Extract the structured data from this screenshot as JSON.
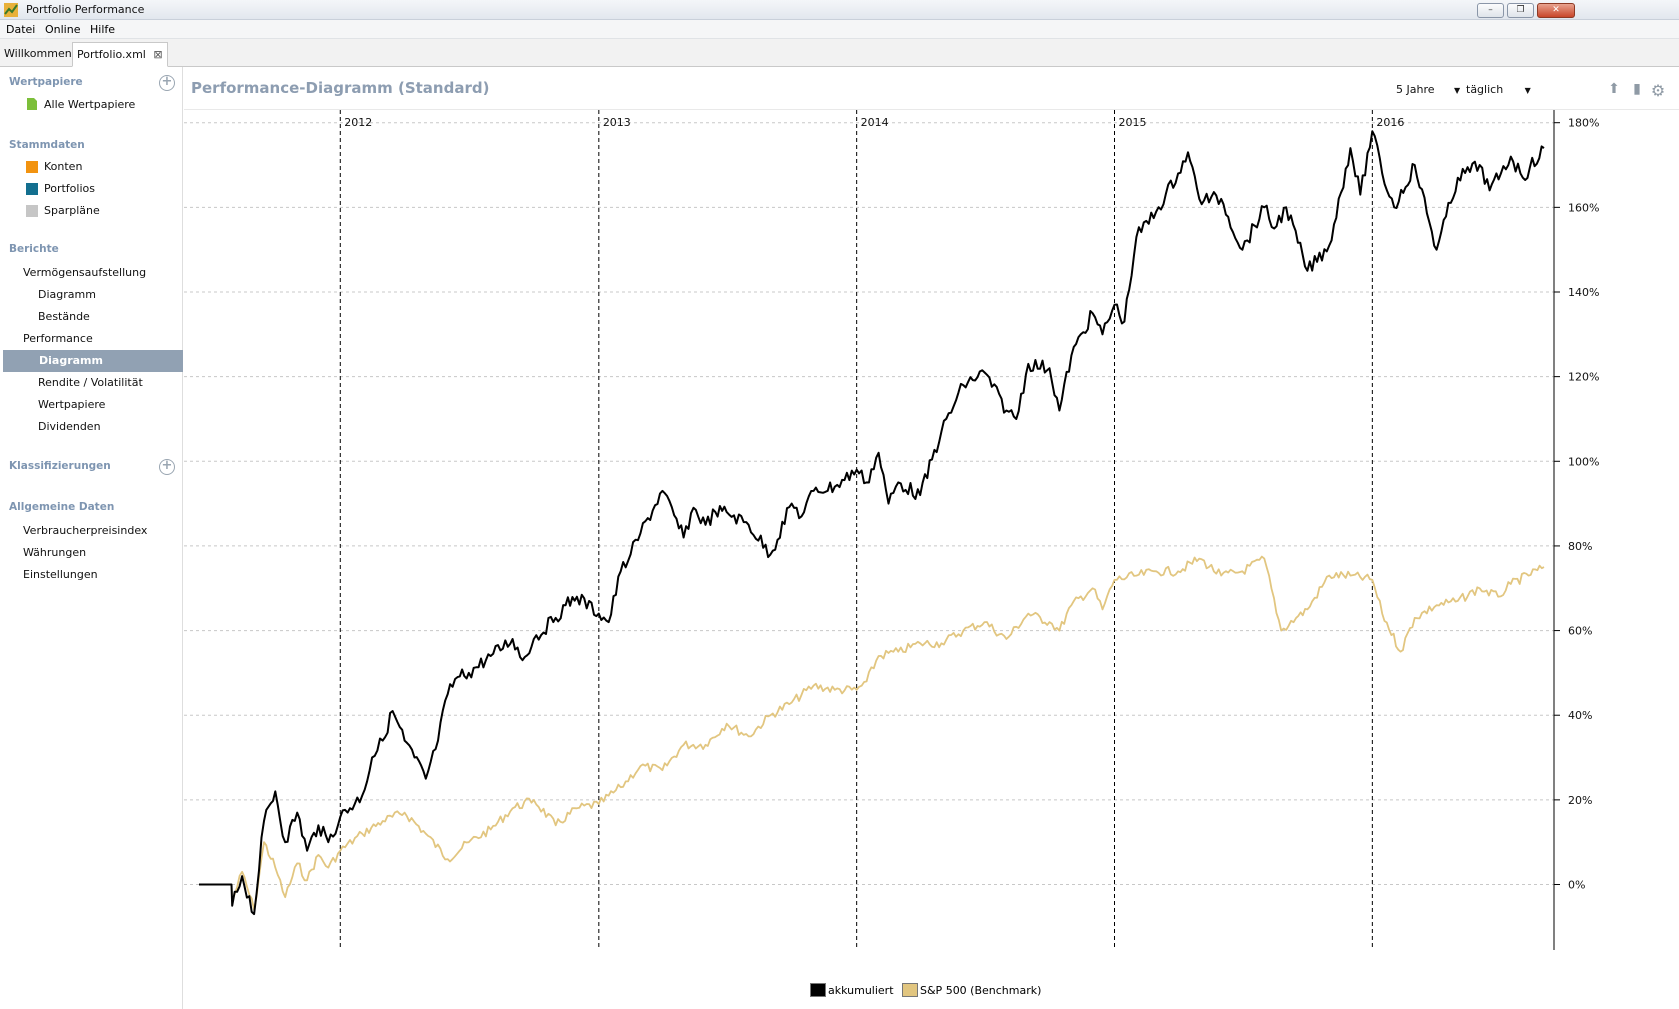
{
  "window": {
    "title": "Portfolio Performance",
    "buttons": [
      "–",
      "❐",
      "✕"
    ]
  },
  "menu": [
    "Datei",
    "Online",
    "Hilfe"
  ],
  "tabs": [
    {
      "label": "Willkommen"
    },
    {
      "label": "Portfolio.xml",
      "close": "⊠"
    }
  ],
  "sidebar": {
    "wertpapiere": {
      "head": "Wertpapiere",
      "items": [
        "Alle Wertpapiere"
      ]
    },
    "stammdaten": {
      "head": "Stammdaten",
      "items": [
        "Konten",
        "Portfolios",
        "Sparpläne"
      ]
    },
    "berichte": {
      "head": "Berichte",
      "items": [
        "Vermögensaufstellung",
        "Diagramm",
        "Bestände",
        "Performance",
        "Diagramm",
        "Rendite / Volatilität",
        "Wertpapiere",
        "Dividenden"
      ]
    },
    "klassifizierungen": {
      "head": "Klassifizierungen"
    },
    "allgemein": {
      "head": "Allgemeine Daten",
      "items": [
        "Verbraucherpreisindex",
        "Währungen",
        "Einstellungen"
      ]
    }
  },
  "view": {
    "title": "Performance-Diagramm (Standard)",
    "period": "5 Jahre",
    "interval": "täglich"
  },
  "colors": {
    "accumulated": "#000000",
    "benchmark": "#e2c680",
    "selection": "#91a1b3",
    "heading": "#7e95b1"
  },
  "chart_data": {
    "type": "line",
    "x_ticks": [
      "2012",
      "2013",
      "2014",
      "2015",
      "2016"
    ],
    "x_range": [
      "2011-06-15",
      "2016-08-31"
    ],
    "y_ticks": [
      "180%",
      "160%",
      "140%",
      "120%",
      "100%",
      "80%",
      "60%",
      "40%",
      "20%",
      "0%"
    ],
    "ylim": [
      -15,
      183
    ],
    "grid": true,
    "legend": "bottom-center",
    "series": [
      {
        "name": "akkumuliert",
        "color": "#000000",
        "x": [
          "2011-06-15",
          "2011-07-31",
          "2011-08-01",
          "2011-08-15",
          "2011-09-01",
          "2011-09-15",
          "2011-10-01",
          "2011-10-15",
          "2011-11-01",
          "2011-11-15",
          "2011-12-01",
          "2011-12-15",
          "2012-01-01",
          "2012-02-01",
          "2012-02-15",
          "2012-03-01",
          "2012-03-15",
          "2012-04-01",
          "2012-04-15",
          "2012-05-01",
          "2012-05-15",
          "2012-06-01",
          "2012-06-15",
          "2012-07-01",
          "2012-08-01",
          "2012-09-01",
          "2012-09-15",
          "2012-10-01",
          "2012-11-01",
          "2012-11-15",
          "2012-12-01",
          "2013-01-01",
          "2013-01-15",
          "2013-02-01",
          "2013-02-15",
          "2013-03-01",
          "2013-04-01",
          "2013-05-01",
          "2013-05-15",
          "2013-06-01",
          "2013-06-15",
          "2013-07-01",
          "2013-08-01",
          "2013-09-01",
          "2013-10-01",
          "2013-10-15",
          "2013-11-01",
          "2013-12-01",
          "2014-01-01",
          "2014-01-15",
          "2014-02-01",
          "2014-02-15",
          "2014-03-01",
          "2014-04-01",
          "2014-05-01",
          "2014-06-01",
          "2014-07-01",
          "2014-08-01",
          "2014-08-15",
          "2014-09-01",
          "2014-10-01",
          "2014-10-15",
          "2014-11-01",
          "2014-12-01",
          "2014-12-15",
          "2015-01-01",
          "2015-01-15",
          "2015-02-01",
          "2015-03-01",
          "2015-04-01",
          "2015-04-15",
          "2015-05-01",
          "2015-06-01",
          "2015-07-01",
          "2015-08-01",
          "2015-08-15",
          "2015-09-01",
          "2015-10-01",
          "2015-11-01",
          "2015-12-01",
          "2015-12-15",
          "2016-01-01",
          "2016-01-15",
          "2016-02-01",
          "2016-03-01",
          "2016-04-01",
          "2016-05-01",
          "2016-06-01",
          "2016-06-15",
          "2016-07-01",
          "2016-07-15",
          "2016-08-01",
          "2016-08-31"
        ],
        "y": [
          0,
          0,
          -5,
          2,
          -7,
          15,
          22,
          10,
          17,
          8,
          14,
          10,
          16,
          21,
          30,
          34,
          41,
          34,
          30,
          25,
          32,
          45,
          49,
          50,
          54,
          58,
          53,
          58,
          63,
          66,
          68,
          64,
          62,
          74,
          78,
          83,
          93,
          82,
          89,
          85,
          88,
          88,
          85,
          78,
          90,
          87,
          93,
          94,
          98,
          95,
          102,
          90,
          95,
          92,
          107,
          118,
          121,
          112,
          110,
          123,
          122,
          112,
          125,
          135,
          130,
          137,
          133,
          153,
          159,
          168,
          173,
          162,
          162,
          150,
          160,
          155,
          160,
          145,
          151,
          174,
          163,
          178,
          168,
          160,
          170,
          150,
          167,
          170,
          164,
          168,
          172,
          167,
          174
        ]
      },
      {
        "name": "S&P 500 (Benchmark)",
        "color": "#e2c680",
        "x": [
          "2011-06-15",
          "2011-07-31",
          "2011-08-01",
          "2011-08-15",
          "2011-09-01",
          "2011-09-15",
          "2011-10-01",
          "2011-10-15",
          "2011-11-01",
          "2011-11-15",
          "2011-12-01",
          "2011-12-15",
          "2012-01-01",
          "2012-02-01",
          "2012-03-01",
          "2012-04-01",
          "2012-05-01",
          "2012-06-01",
          "2012-07-01",
          "2012-08-01",
          "2012-09-01",
          "2012-10-01",
          "2012-11-01",
          "2012-12-01",
          "2013-01-01",
          "2013-02-01",
          "2013-03-01",
          "2013-04-01",
          "2013-05-01",
          "2013-06-01",
          "2013-07-01",
          "2013-08-01",
          "2013-09-01",
          "2013-10-01",
          "2013-11-01",
          "2013-12-01",
          "2014-01-01",
          "2014-01-15",
          "2014-02-01",
          "2014-03-01",
          "2014-04-01",
          "2014-05-01",
          "2014-06-01",
          "2014-07-01",
          "2014-08-01",
          "2014-09-01",
          "2014-10-01",
          "2014-10-15",
          "2014-11-01",
          "2014-12-01",
          "2014-12-15",
          "2015-01-01",
          "2015-02-01",
          "2015-03-01",
          "2015-04-01",
          "2015-05-01",
          "2015-06-01",
          "2015-07-01",
          "2015-08-01",
          "2015-08-25",
          "2015-09-15",
          "2015-10-01",
          "2015-11-01",
          "2015-12-01",
          "2016-01-01",
          "2016-01-15",
          "2016-02-10",
          "2016-03-01",
          "2016-04-01",
          "2016-05-01",
          "2016-06-01",
          "2016-06-27",
          "2016-07-15",
          "2016-08-31"
        ],
        "y": [
          0,
          0,
          -4,
          3,
          -6,
          10,
          4,
          -3,
          5,
          1,
          7,
          4,
          8,
          12,
          15,
          17,
          12,
          6,
          10,
          13,
          18,
          20,
          14,
          18,
          19,
          23,
          28,
          27,
          33,
          33,
          38,
          35,
          40,
          43,
          47,
          46,
          46,
          48,
          54,
          55,
          57,
          57,
          60,
          62,
          58,
          64,
          62,
          60,
          66,
          70,
          65,
          72,
          73,
          74,
          74,
          77,
          73,
          74,
          77,
          60,
          63,
          65,
          73,
          73,
          72,
          64,
          55,
          63,
          66,
          67,
          70,
          68,
          71,
          75
        ]
      }
    ]
  },
  "legend": {
    "items": [
      "akkumuliert",
      "S&P 500 (Benchmark)"
    ]
  }
}
